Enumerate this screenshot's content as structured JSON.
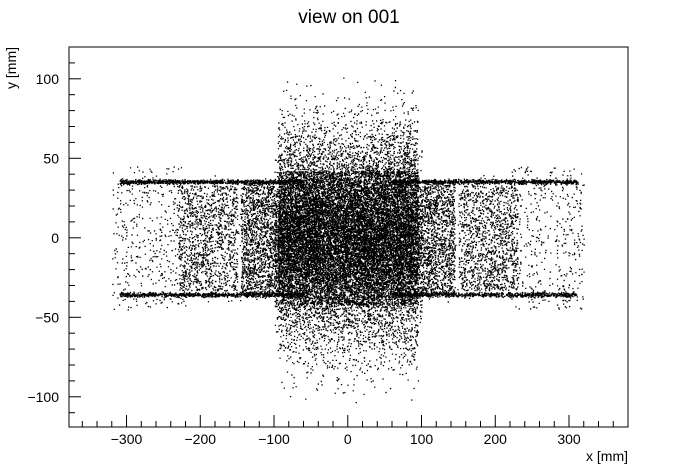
{
  "chart_data": {
    "type": "scatter",
    "title": "view on 001",
    "xlabel": "x [mm]",
    "ylabel": "y [mm]",
    "xlim": [
      -378,
      380
    ],
    "ylim": [
      -119,
      120
    ],
    "xticks": [
      -300,
      -200,
      -100,
      0,
      100,
      200,
      300
    ],
    "yticks": [
      -100,
      -50,
      0,
      50,
      100
    ],
    "xtick_labels": [
      "−300",
      "−200",
      "−100",
      "0",
      "100",
      "200",
      "300"
    ],
    "ytick_labels": [
      "−100",
      "−50",
      "0",
      "50",
      "100"
    ],
    "grid": false,
    "legend": "none",
    "marker_color": "#000000",
    "description_of_points": "Dense particle hit distribution: solid core x -90..95, y -40..40; diffuse halo to |y|~100 for |x|<100; side lobes x ±(100..230) with bands at y ±35 extending to x ±310",
    "regions": [
      {
        "name": "core",
        "x": [
          -95,
          95
        ],
        "y": [
          -42,
          42
        ],
        "density": "saturated"
      },
      {
        "name": "halo",
        "x": [
          -100,
          100
        ],
        "y": [
          -100,
          100
        ],
        "density": "sparse"
      },
      {
        "name": "inner-blocks",
        "x": [
          100,
          145
        ],
        "y": [
          -35,
          35
        ],
        "density": "dense"
      },
      {
        "name": "outer-blocks",
        "x": [
          150,
          230
        ],
        "y": [
          -35,
          35
        ],
        "density": "medium"
      },
      {
        "name": "band-top",
        "x": [
          -310,
          310
        ],
        "y": [
          34,
          37
        ],
        "density": "dense"
      },
      {
        "name": "band-bottom",
        "x": [
          -310,
          310
        ],
        "y": [
          -37,
          -34
        ],
        "density": "dense"
      },
      {
        "name": "outer-scatter",
        "x": [
          -320,
          320
        ],
        "y": [
          -45,
          45
        ],
        "density": "very sparse"
      }
    ]
  }
}
